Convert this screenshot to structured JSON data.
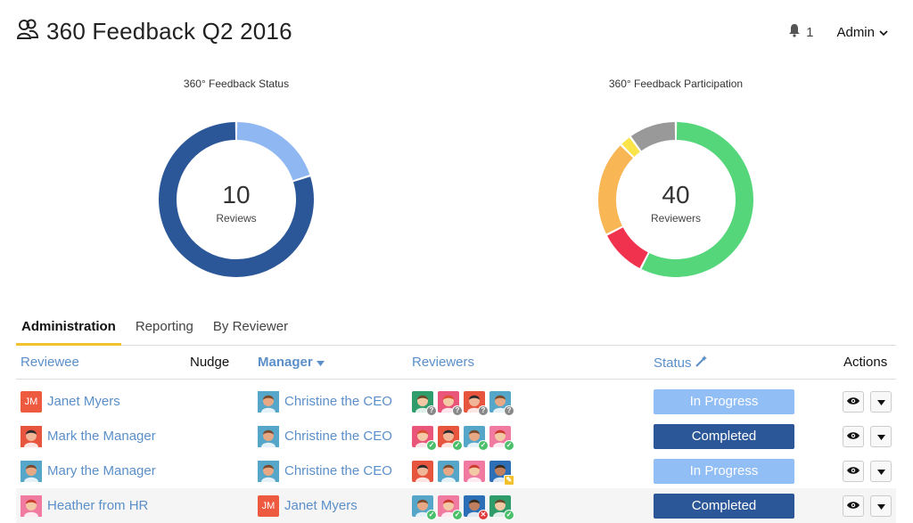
{
  "header": {
    "title": "360 Feedback Q2 2016",
    "notification_count": "1",
    "user_menu": "Admin"
  },
  "charts": [
    {
      "title": "360° Feedback Status",
      "center_value": "10",
      "center_label": "Reviews"
    },
    {
      "title": "360° Feedback Participation",
      "center_value": "40",
      "center_label": "Reviewers"
    }
  ],
  "chart_data": [
    {
      "type": "pie",
      "title": "360° Feedback Status",
      "values": [
        2,
        8
      ],
      "colors": [
        "#8fb8f2",
        "#2b5798"
      ]
    },
    {
      "type": "pie",
      "title": "360° Feedback Participation",
      "values": [
        23,
        4,
        8,
        1,
        4
      ],
      "colors": [
        "#56d67b",
        "#f0324f",
        "#f9b655",
        "#fbe44a",
        "#999999"
      ]
    }
  ],
  "tabs": [
    "Administration",
    "Reporting",
    "By Reviewer"
  ],
  "table": {
    "headers": {
      "reviewee": "Reviewee",
      "nudge": "Nudge",
      "manager": "Manager",
      "reviewers": "Reviewers",
      "status": "Status",
      "actions": "Actions"
    },
    "rows": [
      {
        "reviewee": "Janet Myers",
        "reviewee_avatar": "JM",
        "manager": "Christine the CEO",
        "reviewers": [
          "q",
          "q",
          "q",
          "q"
        ],
        "status": "In Progress",
        "status_type": "progress"
      },
      {
        "reviewee": "Mark the Manager",
        "manager": "Christine the CEO",
        "reviewers": [
          "ok",
          "ok",
          "ok",
          "ok"
        ],
        "status": "Completed",
        "status_type": "complete"
      },
      {
        "reviewee": "Mary the Manager",
        "manager": "Christine the CEO",
        "reviewers": [
          "none",
          "none",
          "none",
          "pen"
        ],
        "status": "In Progress",
        "status_type": "progress"
      },
      {
        "reviewee": "Heather from HR",
        "manager": "Janet Myers",
        "manager_avatar": "JM",
        "reviewers": [
          "ok",
          "ok",
          "x",
          "ok"
        ],
        "status": "Completed",
        "status_type": "complete"
      }
    ]
  },
  "colors": {
    "link": "#5b8fc9",
    "accent_tab": "#f2c12e",
    "in_progress": "#92bef6",
    "completed": "#2b5798"
  }
}
